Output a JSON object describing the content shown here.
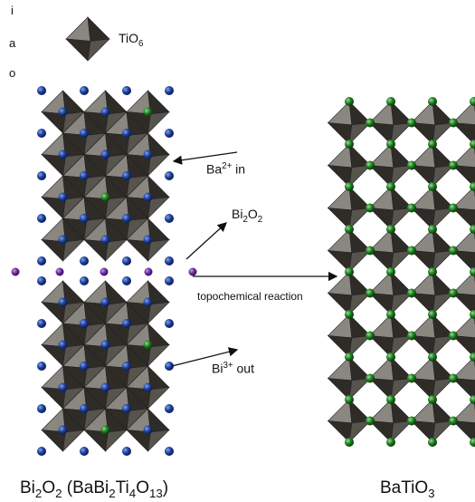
{
  "legend": {
    "letters": [
      "i",
      "a",
      "o"
    ],
    "tio6": {
      "base": "TiO",
      "sub": "6"
    }
  },
  "annotations": {
    "ba_in": {
      "base": "Ba",
      "sup": "2+",
      "rest": " in"
    },
    "bi2o2": {
      "a": "Bi",
      "s1": "2",
      "b": "O",
      "s2": "2"
    },
    "reaction": "topochemical reaction",
    "bi_out": {
      "base": "Bi",
      "sup": "3+",
      "rest": " out"
    }
  },
  "captions": {
    "left": {
      "a": "Bi",
      "s1": "2",
      "b": "O",
      "s2": "2",
      "c": " (BaBi",
      "s3": "2",
      "d": "Ti",
      "s4": "4",
      "e": "O",
      "s5": "13",
      "f": ")"
    },
    "right": {
      "a": "BaTiO",
      "s1": "3"
    }
  },
  "colors": {
    "octahedron_dark": "#2f2c28",
    "octahedron_light": "#8a8680",
    "octahedron_mid": "#57534d",
    "ba_ion": "#1f7a1f",
    "bi_ion": "#1e3f9a",
    "bi2o2_ion": "#6a2a9a",
    "arrow": "#111111"
  }
}
